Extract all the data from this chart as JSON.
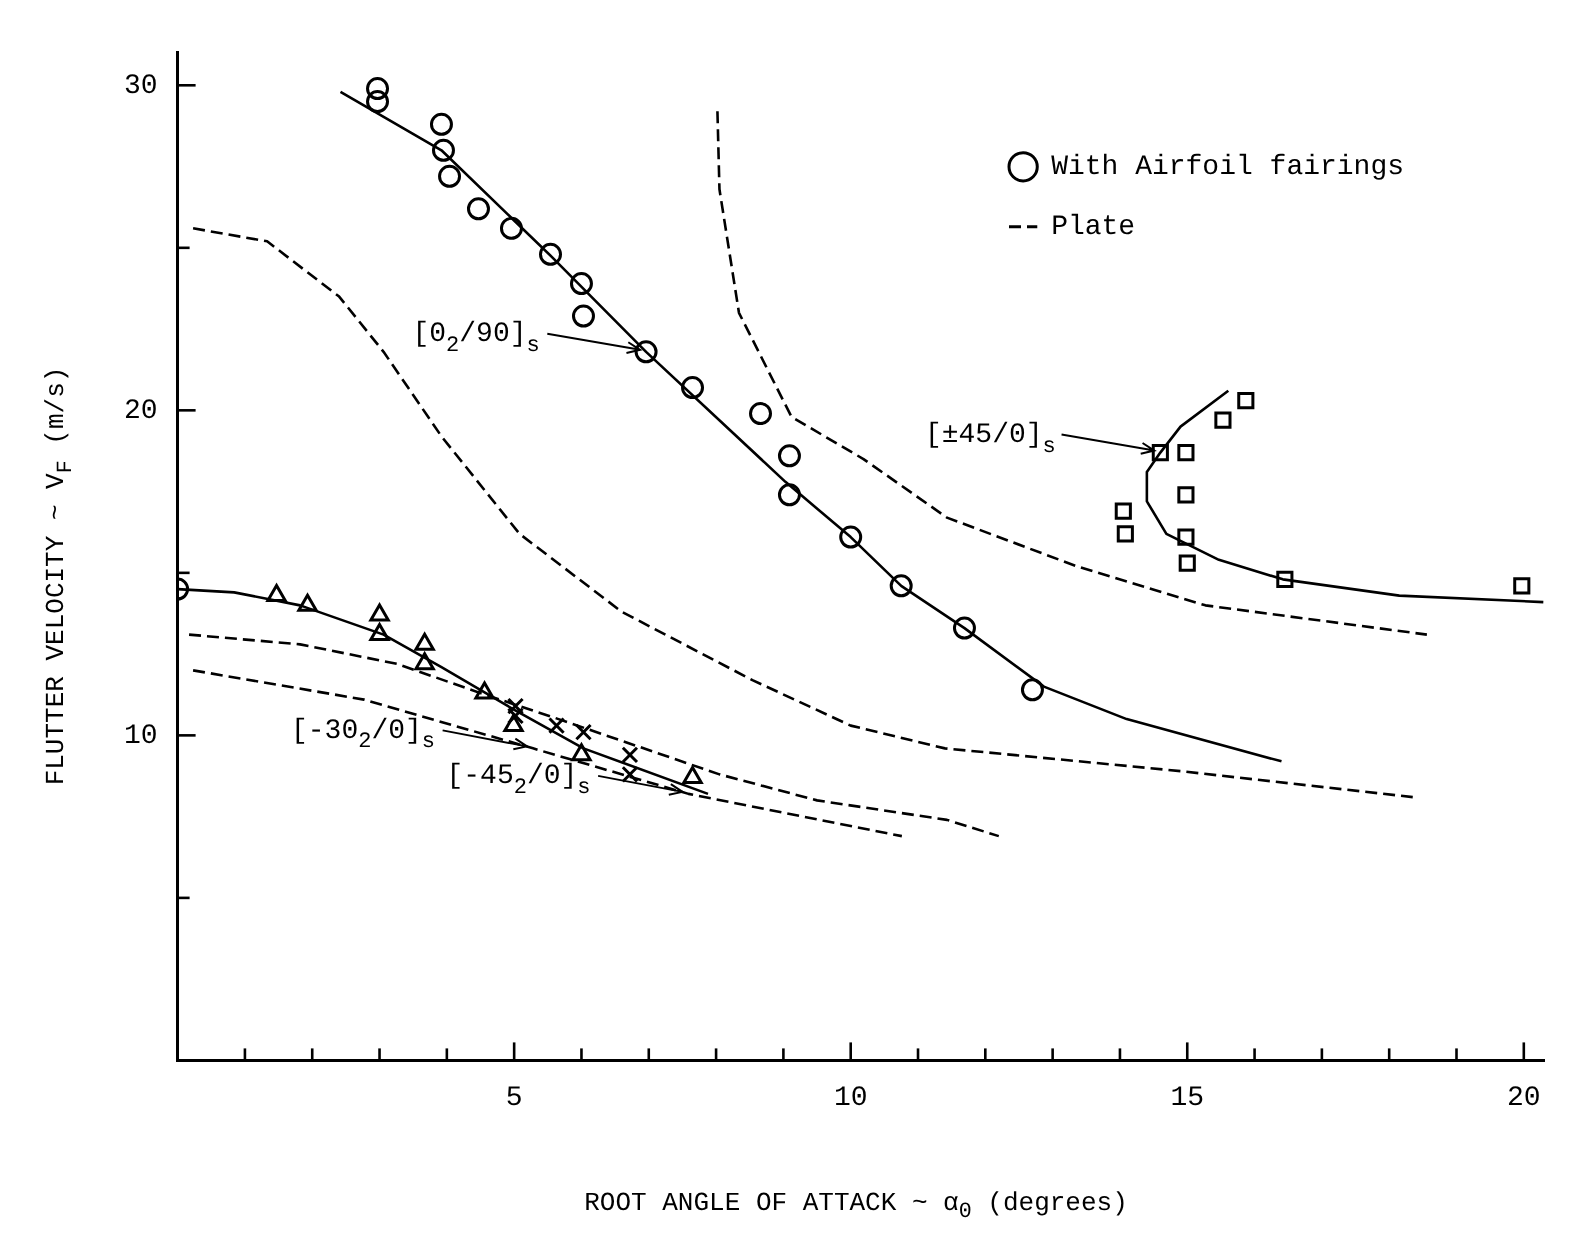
{
  "chart_data": {
    "type": "scatter",
    "xlabel": "ROOT ANGLE OF ATTACK    ~    α$_{0}$ (degrees)",
    "ylabel": "FLUTTER VELOCITY    ~    V$_{F}$  (m/s)",
    "xlim": [
      0,
      20.3
    ],
    "ylim": [
      0,
      31
    ],
    "xticks": [
      {
        "value": 1,
        "label": null
      },
      {
        "value": 2,
        "label": null
      },
      {
        "value": 3,
        "label": null
      },
      {
        "value": 4,
        "label": null
      },
      5,
      {
        "value": 6,
        "label": null
      },
      {
        "value": 7,
        "label": null
      },
      {
        "value": 8,
        "label": null
      },
      {
        "value": 9,
        "label": null
      },
      10,
      {
        "value": 11,
        "label": null
      },
      {
        "value": 12,
        "label": null
      },
      {
        "value": 13,
        "label": null
      },
      {
        "value": 14,
        "label": null
      },
      15,
      {
        "value": 16,
        "label": null
      },
      {
        "value": 17,
        "label": null
      },
      {
        "value": 18,
        "label": null
      },
      {
        "value": 19,
        "label": null
      },
      20
    ],
    "yticks": [
      {
        "value": 5,
        "label": null
      },
      10,
      {
        "value": 15,
        "label": null
      },
      20,
      {
        "value": 25,
        "label": null
      },
      30
    ],
    "grid": false,
    "legend": "top right",
    "annotations": [
      {
        "text": "[0$_{2}$/90]$_{s}$",
        "x": 6.96,
        "y": 21.8
      },
      {
        "text": "[±45/0]$_{s}$",
        "x": 14.6,
        "y": 18.7
      },
      {
        "text": "[-30$_{2}$/0]$_{s}$",
        "x": 5.28,
        "y": 9.6
      },
      {
        "text": "[-45$_{2}$/0]$_{s}$",
        "x": 7.59,
        "y": 8.2
      }
    ],
    "series": [
      {
        "name": "With Airfoil fairings",
        "marker": "circle",
        "color": "#000000",
        "x": [
          2.97,
          2.97,
          3.92,
          3.95,
          4.04,
          4.47,
          4.96,
          5.54,
          6.0,
          6.03,
          6.96,
          7.65,
          8.66,
          9.09,
          9.09,
          10.0,
          10.75,
          11.69,
          12.7
        ],
        "values": [
          29.9,
          29.5,
          28.8,
          28.0,
          27.2,
          26.2,
          25.6,
          24.8,
          23.9,
          22.9,
          21.8,
          20.7,
          19.9,
          18.6,
          17.4,
          16.1,
          14.6,
          13.3,
          11.4
        ]
      },
      {
        "marker": "square",
        "color": "#000000",
        "x": [
          15.87,
          15.53,
          14.6,
          14.98,
          14.98,
          14.05,
          14.08,
          14.98,
          15.0,
          16.45,
          19.97
        ],
        "values": [
          20.3,
          19.7,
          18.7,
          18.7,
          17.4,
          16.9,
          16.2,
          16.1,
          15.3,
          14.8,
          14.6
        ]
      },
      {
        "marker": "triangle",
        "color": "#000000",
        "x": [
          1.47,
          1.93,
          3.0,
          3.0,
          3.67,
          3.67,
          4.56,
          4.99,
          6.0,
          7.65
        ],
        "values": [
          14.3,
          14.0,
          13.7,
          13.1,
          12.8,
          12.2,
          11.3,
          10.3,
          9.4,
          8.7
        ]
      },
      {
        "marker": "cross",
        "color": "#000000",
        "x": [
          5.02,
          5.02,
          5.63,
          6.03,
          6.72,
          6.72
        ],
        "values": [
          10.9,
          10.6,
          10.3,
          10.1,
          9.4,
          8.8
        ]
      },
      {
        "marker": "circle",
        "color": "#000000",
        "x": [
          0
        ],
        "values": [
          14.5
        ]
      },
      {
        "type": "line",
        "marker": "none",
        "line_style": "solid",
        "color": "#000000",
        "x": [
          2.42,
          3.92,
          5.57,
          6.96,
          9.03,
          10.0,
          10.75,
          11.69,
          12.87,
          14.1,
          16.4
        ],
        "values": [
          29.8,
          28.0,
          24.7,
          21.8,
          17.8,
          16.1,
          14.6,
          13.3,
          11.5,
          10.5,
          9.2
        ]
      },
      {
        "type": "line",
        "marker": "none",
        "line_style": "solid",
        "color": "#000000",
        "x": [
          15.61,
          14.9,
          14.6,
          14.4,
          14.4,
          14.69,
          15.47,
          16.42,
          18.15,
          20.29
        ],
        "values": [
          20.6,
          19.5,
          18.7,
          18.1,
          17.2,
          16.2,
          15.4,
          14.8,
          14.3,
          14.1
        ]
      },
      {
        "type": "line",
        "marker": "none",
        "line_style": "solid",
        "color": "#000000",
        "x": [
          0,
          0.84,
          1.82,
          3.06,
          3.92,
          4.99,
          6.03,
          7.88
        ],
        "values": [
          14.5,
          14.4,
          14.0,
          13.1,
          12.1,
          10.8,
          9.6,
          8.2
        ]
      },
      {
        "name": "Plate",
        "type": "line",
        "marker": "none",
        "line_style": "dashed",
        "color": "#000000",
        "x": [
          0.23,
          1.33,
          2.4,
          3.06,
          3.92,
          5.08,
          6.6,
          8.54,
          10.0,
          11.4,
          14.9,
          18.35
        ],
        "values": [
          25.6,
          25.2,
          23.5,
          21.8,
          19.2,
          16.2,
          13.8,
          11.7,
          10.3,
          9.6,
          8.9,
          8.1
        ]
      },
      {
        "type": "line",
        "marker": "none",
        "line_style": "dashed",
        "color": "#000000",
        "x": [
          8.02,
          8.05,
          8.34,
          9.12,
          10.19,
          11.43,
          13.36,
          15.27,
          18.56
        ],
        "values": [
          29.2,
          26.8,
          23.0,
          19.8,
          18.5,
          16.7,
          15.2,
          14.0,
          13.1
        ]
      },
      {
        "type": "line",
        "marker": "none",
        "line_style": "dashed",
        "color": "#000000",
        "x": [
          0.17,
          1.82,
          3.26,
          4.5,
          5.66,
          8.05,
          9.5,
          11.43,
          12.2
        ],
        "values": [
          13.1,
          12.8,
          12.2,
          11.3,
          10.5,
          8.8,
          8.0,
          7.4,
          6.9
        ]
      },
      {
        "type": "line",
        "marker": "none",
        "line_style": "dashed",
        "color": "#000000",
        "x": [
          0.23,
          2.77,
          5.28,
          7.59,
          10.76
        ],
        "values": [
          12.0,
          11.1,
          9.6,
          8.2,
          6.9
        ]
      }
    ]
  }
}
